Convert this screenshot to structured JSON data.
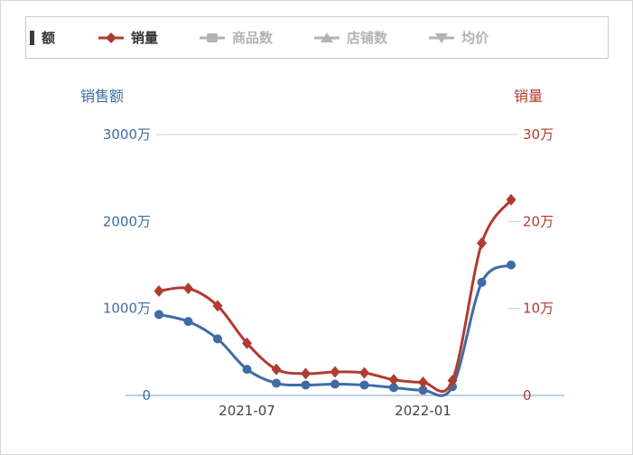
{
  "legend": {
    "items": [
      {
        "label": "额",
        "state": "truncated"
      },
      {
        "label": "销量",
        "state": "active",
        "marker": "diamond-line",
        "color": "#b13b32"
      },
      {
        "label": "商品数",
        "state": "disabled",
        "marker": "bar-line",
        "color": "#b3b3b3"
      },
      {
        "label": "店铺数",
        "state": "disabled",
        "marker": "triangle-line",
        "color": "#b3b3b3"
      },
      {
        "label": "均价",
        "state": "disabled",
        "marker": "down-triangle-line",
        "color": "#b3b3b3"
      }
    ],
    "active_text_color": "#333333",
    "disabled_color": "#b3b3b3"
  },
  "chart_data": {
    "type": "line",
    "x": [
      "2021-04",
      "2021-05",
      "2021-06",
      "2021-07",
      "2021-08",
      "2021-09",
      "2021-10",
      "2021-11",
      "2021-12",
      "2022-01",
      "2022-02",
      "2022-03",
      "2022-04"
    ],
    "x_tick_labels": [
      {
        "label": "2021-07",
        "index": 3
      },
      {
        "label": "2022-01",
        "index": 9
      }
    ],
    "series": [
      {
        "name": "销售额",
        "axis": "left",
        "marker": "circle",
        "color": "#3f6ca6",
        "unit": "万",
        "values": [
          930,
          850,
          650,
          300,
          140,
          120,
          130,
          120,
          90,
          60,
          100,
          1300,
          1500
        ]
      },
      {
        "name": "销量",
        "axis": "right",
        "marker": "diamond",
        "color": "#b13b32",
        "unit": "万",
        "values": [
          12,
          12.3,
          10.3,
          6,
          3,
          2.5,
          2.7,
          2.6,
          1.8,
          1.5,
          1.7,
          17.5,
          22.5
        ]
      }
    ],
    "y_left": {
      "title": "销售额",
      "min": 0,
      "max": 3000,
      "color": "#3f6ca6",
      "ticks": [
        {
          "v": 3000,
          "label": "3000万"
        },
        {
          "v": 2000,
          "label": "2000万"
        },
        {
          "v": 1000,
          "label": "1000万"
        },
        {
          "v": 0,
          "label": "0"
        }
      ]
    },
    "y_right": {
      "title": "销量",
      "min": 0,
      "max": 30,
      "color": "#b13b32",
      "ticks": [
        {
          "v": 30,
          "label": "30万"
        },
        {
          "v": 20,
          "label": "20万"
        },
        {
          "v": 10,
          "label": "10万"
        },
        {
          "v": 0,
          "label": "0"
        }
      ]
    },
    "grid": {
      "top_gridline_color": "#cccccc",
      "bottom_axis_color": "#a7c0dc",
      "x_label_color": "#444444"
    },
    "legend_position": "top"
  }
}
